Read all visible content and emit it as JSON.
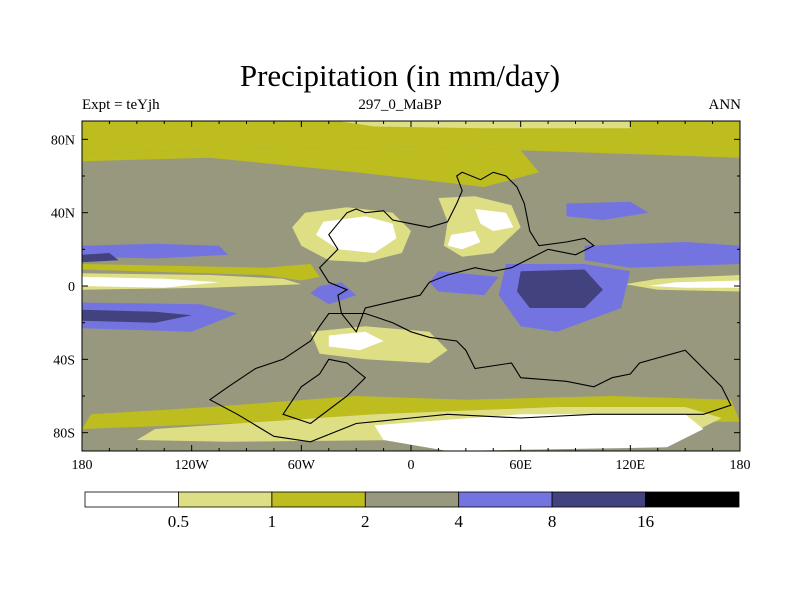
{
  "header": {
    "title": "Precipitation (in mm/day)",
    "left": "Expt = teYjh",
    "center": "297_0_MaBP",
    "right": "ANN"
  },
  "chart_data": {
    "type": "heatmap",
    "title": "Precipitation (in mm/day)",
    "xlabel": "",
    "ylabel": "",
    "xlim": [
      -180,
      180
    ],
    "ylim": [
      -90,
      90
    ],
    "x_ticks": [
      {
        "value": -180,
        "label": "180"
      },
      {
        "value": -120,
        "label": "120W"
      },
      {
        "value": -60,
        "label": "60W"
      },
      {
        "value": 0,
        "label": "0"
      },
      {
        "value": 60,
        "label": "60E"
      },
      {
        "value": 120,
        "label": "120E"
      },
      {
        "value": 180,
        "label": "180"
      }
    ],
    "y_ticks": [
      {
        "value": 80,
        "label": "80N"
      },
      {
        "value": 40,
        "label": "40N"
      },
      {
        "value": 0,
        "label": "0"
      },
      {
        "value": -40,
        "label": "40S"
      },
      {
        "value": -80,
        "label": "80S"
      }
    ],
    "colorbar": {
      "levels": [
        0.5,
        1,
        2,
        4,
        8,
        16
      ],
      "level_labels": [
        "0.5",
        "1",
        "2",
        "4",
        "8",
        "16"
      ],
      "colors": [
        "#ffffff",
        "#dede85",
        "#bdbd20",
        "#98987f",
        "#7474e0",
        "#42427f",
        "#000000"
      ]
    },
    "background_class": 3,
    "regions": [
      {
        "name": "north-polar-band",
        "class": 2,
        "points": [
          [
            -180,
            90
          ],
          [
            180,
            90
          ],
          [
            180,
            70
          ],
          [
            60,
            74
          ],
          [
            0,
            76
          ],
          [
            -90,
            75
          ],
          [
            -180,
            72
          ]
        ]
      },
      {
        "name": "north-pole-cap",
        "class": 1,
        "points": [
          [
            -40,
            90
          ],
          [
            120,
            90
          ],
          [
            120,
            86
          ],
          [
            40,
            86
          ],
          [
            -20,
            87
          ]
        ]
      },
      {
        "name": "nh-midlat-dry-band",
        "class": 2,
        "points": [
          [
            -180,
            72
          ],
          [
            -90,
            75
          ],
          [
            0,
            76
          ],
          [
            60,
            74
          ],
          [
            70,
            62
          ],
          [
            40,
            54
          ],
          [
            -30,
            62
          ],
          [
            -110,
            70
          ],
          [
            -180,
            68
          ]
        ]
      },
      {
        "name": "east-pacific-wet-band",
        "class": 4,
        "points": [
          [
            -180,
            22
          ],
          [
            -140,
            23
          ],
          [
            -105,
            22
          ],
          [
            -100,
            17
          ],
          [
            -140,
            15
          ],
          [
            -180,
            16
          ]
        ]
      },
      {
        "name": "east-pacific-dark-core",
        "class": 5,
        "points": [
          [
            -180,
            17
          ],
          [
            -165,
            18
          ],
          [
            -160,
            14
          ],
          [
            -180,
            13
          ]
        ]
      },
      {
        "name": "north-tropical-dry-zone",
        "class": 2,
        "points": [
          [
            -180,
            12
          ],
          [
            -80,
            10
          ],
          [
            -55,
            12
          ],
          [
            -50,
            5
          ],
          [
            -60,
            3
          ],
          [
            -80,
            6
          ],
          [
            -180,
            9
          ]
        ]
      },
      {
        "name": "equatorial-dry-tongue-west",
        "class": 1,
        "points": [
          [
            -180,
            7
          ],
          [
            -110,
            6
          ],
          [
            -70,
            4
          ],
          [
            -60,
            1
          ],
          [
            -110,
            -1
          ],
          [
            -180,
            -2
          ]
        ]
      },
      {
        "name": "equatorial-dry-core-west",
        "class": 0,
        "points": [
          [
            -180,
            5
          ],
          [
            -135,
            4
          ],
          [
            -105,
            2
          ],
          [
            -135,
            -1
          ],
          [
            -180,
            0
          ]
        ]
      },
      {
        "name": "equatorial-dry-tongue-east",
        "class": 1,
        "points": [
          [
            180,
            6
          ],
          [
            135,
            4
          ],
          [
            117,
            1
          ],
          [
            135,
            -2
          ],
          [
            180,
            -3
          ]
        ]
      },
      {
        "name": "equatorial-dry-core-east",
        "class": 0,
        "points": [
          [
            180,
            3
          ],
          [
            145,
            2
          ],
          [
            130,
            0
          ],
          [
            150,
            -1
          ],
          [
            180,
            -1
          ]
        ]
      },
      {
        "name": "south-tropical-wet-band",
        "class": 4,
        "points": [
          [
            -180,
            -9
          ],
          [
            -115,
            -10
          ],
          [
            -95,
            -15
          ],
          [
            -120,
            -25
          ],
          [
            -180,
            -23
          ]
        ]
      },
      {
        "name": "south-tropical-dark-core",
        "class": 5,
        "points": [
          [
            -180,
            -13
          ],
          [
            -140,
            -14
          ],
          [
            -120,
            -16
          ],
          [
            -140,
            -20
          ],
          [
            -180,
            -19
          ]
        ]
      },
      {
        "name": "north-subtropical-desert",
        "class": 1,
        "points": [
          [
            -58,
            40
          ],
          [
            -35,
            43
          ],
          [
            -10,
            40
          ],
          [
            0,
            30
          ],
          [
            -5,
            18
          ],
          [
            -25,
            13
          ],
          [
            -45,
            14
          ],
          [
            -60,
            22
          ],
          [
            -65,
            32
          ]
        ]
      },
      {
        "name": "north-subtropical-desert-core",
        "class": 0,
        "points": [
          [
            -48,
            35
          ],
          [
            -25,
            38
          ],
          [
            -10,
            34
          ],
          [
            -8,
            26
          ],
          [
            -20,
            18
          ],
          [
            -40,
            20
          ],
          [
            -52,
            28
          ]
        ]
      },
      {
        "name": "near-east-desert",
        "class": 1,
        "points": [
          [
            15,
            48
          ],
          [
            35,
            49
          ],
          [
            55,
            44
          ],
          [
            60,
            32
          ],
          [
            45,
            18
          ],
          [
            28,
            16
          ],
          [
            18,
            22
          ],
          [
            20,
            35
          ]
        ]
      },
      {
        "name": "near-east-desert-core-north",
        "class": 0,
        "points": [
          [
            35,
            42
          ],
          [
            52,
            40
          ],
          [
            56,
            32
          ],
          [
            45,
            30
          ],
          [
            38,
            34
          ]
        ]
      },
      {
        "name": "near-east-desert-core-south",
        "class": 0,
        "points": [
          [
            22,
            28
          ],
          [
            35,
            30
          ],
          [
            38,
            24
          ],
          [
            28,
            20
          ],
          [
            20,
            22
          ]
        ]
      },
      {
        "name": "north-asia-wet-cell",
        "class": 4,
        "points": [
          [
            85,
            45
          ],
          [
            120,
            46
          ],
          [
            130,
            40
          ],
          [
            105,
            36
          ],
          [
            85,
            38
          ]
        ]
      },
      {
        "name": "east-asia-wet-band",
        "class": 4,
        "points": [
          [
            95,
            22
          ],
          [
            150,
            24
          ],
          [
            180,
            22
          ],
          [
            180,
            12
          ],
          [
            120,
            10
          ],
          [
            95,
            14
          ]
        ]
      },
      {
        "name": "tethys-wet-zone",
        "class": 4,
        "points": [
          [
            52,
            12
          ],
          [
            95,
            12
          ],
          [
            120,
            8
          ],
          [
            115,
            -12
          ],
          [
            80,
            -25
          ],
          [
            60,
            -22
          ],
          [
            48,
            -5
          ]
        ]
      },
      {
        "name": "tethys-dark-core",
        "class": 5,
        "points": [
          [
            60,
            8
          ],
          [
            95,
            9
          ],
          [
            105,
            -2
          ],
          [
            95,
            -12
          ],
          [
            65,
            -12
          ],
          [
            58,
            -3
          ]
        ]
      },
      {
        "name": "west-tethys-wet-strip",
        "class": 4,
        "points": [
          [
            15,
            8
          ],
          [
            48,
            5
          ],
          [
            40,
            -5
          ],
          [
            15,
            -3
          ],
          [
            10,
            2
          ]
        ]
      },
      {
        "name": "western-equatorial-wet-cell",
        "class": 4,
        "points": [
          [
            -50,
            0
          ],
          [
            -38,
            2
          ],
          [
            -30,
            -5
          ],
          [
            -45,
            -10
          ],
          [
            -55,
            -4
          ]
        ]
      },
      {
        "name": "south-subtropical-desert",
        "class": 1,
        "points": [
          [
            -55,
            -25
          ],
          [
            -25,
            -22
          ],
          [
            10,
            -25
          ],
          [
            20,
            -35
          ],
          [
            10,
            -42
          ],
          [
            -25,
            -40
          ],
          [
            -50,
            -37
          ]
        ]
      },
      {
        "name": "south-subtropical-desert-core",
        "class": 0,
        "points": [
          [
            -45,
            -27
          ],
          [
            -25,
            -25
          ],
          [
            -15,
            -30
          ],
          [
            -28,
            -35
          ],
          [
            -45,
            -33
          ]
        ]
      },
      {
        "name": "south-dry-band",
        "class": 2,
        "points": [
          [
            -175,
            -70
          ],
          [
            -110,
            -66
          ],
          [
            -30,
            -60
          ],
          [
            30,
            -62
          ],
          [
            110,
            -60
          ],
          [
            175,
            -62
          ],
          [
            180,
            -74
          ],
          [
            100,
            -74
          ],
          [
            0,
            -74
          ],
          [
            -100,
            -75
          ],
          [
            -180,
            -78
          ]
        ]
      },
      {
        "name": "south-pole-dry-band",
        "class": 1,
        "points": [
          [
            -140,
            -78
          ],
          [
            -20,
            -70
          ],
          [
            80,
            -66
          ],
          [
            150,
            -66
          ],
          [
            170,
            -72
          ],
          [
            150,
            -82
          ],
          [
            0,
            -84
          ],
          [
            -100,
            -85
          ],
          [
            -150,
            -84
          ]
        ]
      },
      {
        "name": "south-pole-cap",
        "class": 0,
        "points": [
          [
            -20,
            -76
          ],
          [
            60,
            -70
          ],
          [
            150,
            -70
          ],
          [
            160,
            -78
          ],
          [
            140,
            -88
          ],
          [
            20,
            -90
          ],
          [
            -15,
            -84
          ]
        ]
      }
    ],
    "coastlines": [
      {
        "name": "laurasia-coast",
        "points": [
          [
            -35,
            40
          ],
          [
            -30,
            42
          ],
          [
            -25,
            40
          ],
          [
            -15,
            41
          ],
          [
            -10,
            36
          ],
          [
            0,
            34
          ],
          [
            10,
            32
          ],
          [
            20,
            35
          ],
          [
            25,
            45
          ],
          [
            28,
            52
          ],
          [
            25,
            60
          ],
          [
            28,
            62
          ],
          [
            38,
            58
          ],
          [
            45,
            62
          ],
          [
            52,
            60
          ],
          [
            58,
            54
          ],
          [
            62,
            45
          ],
          [
            65,
            30
          ],
          [
            70,
            22
          ],
          [
            85,
            24
          ],
          [
            95,
            26
          ],
          [
            100,
            22
          ],
          [
            90,
            17
          ],
          [
            75,
            20
          ],
          [
            65,
            15
          ],
          [
            55,
            10
          ],
          [
            45,
            8
          ],
          [
            35,
            10
          ],
          [
            20,
            6
          ],
          [
            10,
            2
          ],
          [
            5,
            -5
          ],
          [
            -8,
            -8
          ],
          [
            -25,
            -12
          ],
          [
            -30,
            -25
          ],
          [
            -38,
            -15
          ],
          [
            -40,
            -5
          ],
          [
            -35,
            -2
          ],
          [
            -45,
            2
          ],
          [
            -50,
            10
          ],
          [
            -40,
            20
          ],
          [
            -45,
            28
          ],
          [
            -35,
            40
          ]
        ]
      },
      {
        "name": "gondwana-coast",
        "points": [
          [
            -45,
            -15
          ],
          [
            -25,
            -15
          ],
          [
            -10,
            -20
          ],
          [
            0,
            -25
          ],
          [
            10,
            -28
          ],
          [
            25,
            -30
          ],
          [
            30,
            -35
          ],
          [
            35,
            -45
          ],
          [
            55,
            -42
          ],
          [
            60,
            -50
          ],
          [
            85,
            -52
          ],
          [
            100,
            -55
          ],
          [
            110,
            -50
          ],
          [
            120,
            -48
          ],
          [
            125,
            -42
          ],
          [
            150,
            -35
          ],
          [
            160,
            -45
          ],
          [
            170,
            -55
          ],
          [
            175,
            -65
          ],
          [
            160,
            -70
          ],
          [
            100,
            -70
          ],
          [
            60,
            -72
          ],
          [
            20,
            -70
          ],
          [
            0,
            -72
          ],
          [
            -30,
            -75
          ],
          [
            -55,
            -85
          ],
          [
            -75,
            -82
          ],
          [
            -95,
            -70
          ],
          [
            -110,
            -62
          ],
          [
            -100,
            -55
          ],
          [
            -85,
            -45
          ],
          [
            -70,
            -40
          ],
          [
            -55,
            -30
          ],
          [
            -50,
            -22
          ],
          [
            -45,
            -15
          ]
        ]
      },
      {
        "name": "inner-gondwana-seaway",
        "points": [
          [
            -45,
            -40
          ],
          [
            -35,
            -42
          ],
          [
            -25,
            -50
          ],
          [
            -35,
            -60
          ],
          [
            -55,
            -75
          ],
          [
            -70,
            -70
          ],
          [
            -60,
            -55
          ],
          [
            -50,
            -48
          ],
          [
            -45,
            -40
          ]
        ]
      }
    ]
  }
}
